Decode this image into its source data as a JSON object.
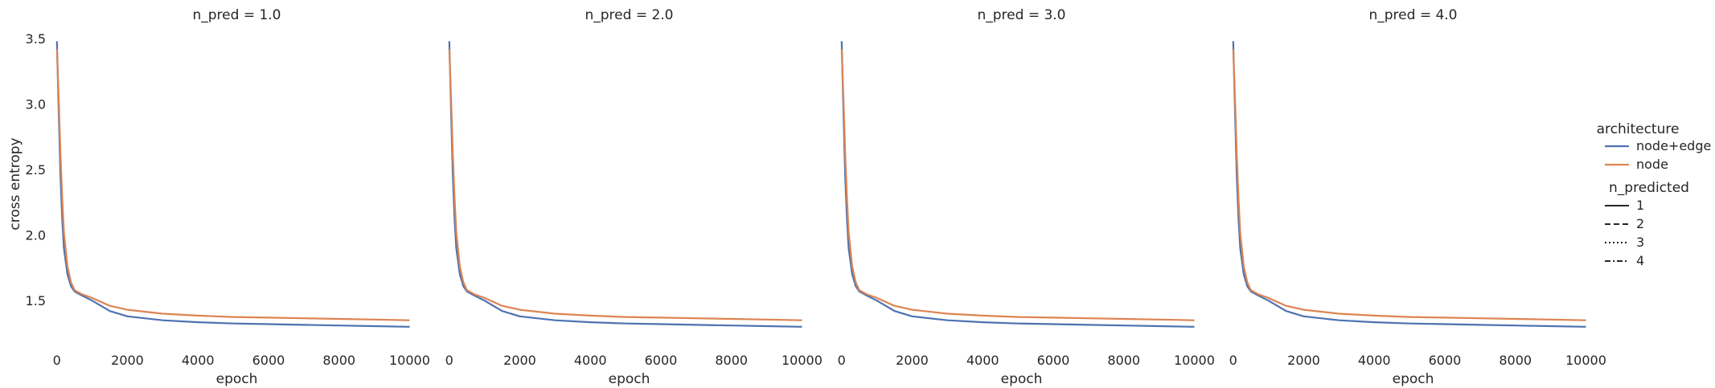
{
  "chart_data": {
    "type": "line",
    "xlabel": "epoch",
    "ylabel": "cross entropy",
    "xlim": [
      -200,
      10400
    ],
    "ylim": [
      1.17,
      3.55
    ],
    "xticks": [
      0,
      2000,
      4000,
      6000,
      8000,
      10000
    ],
    "yticks": [
      1.5,
      2.0,
      2.5,
      3.0,
      3.5
    ],
    "xtick_labels": [
      "0",
      "2000",
      "4000",
      "6000",
      "8000",
      "10000"
    ],
    "ytick_labels": [
      "1.5",
      "2.0",
      "2.5",
      "3.0",
      "3.5"
    ],
    "grid": false,
    "legend_placement": "right",
    "legend": {
      "hue_title": "architecture",
      "hue_entries": [
        {
          "label": "node+edge",
          "color": "#4c72b0"
        },
        {
          "label": "node",
          "color": "#dd8452"
        }
      ],
      "style_title": "n_predicted",
      "style_entries": [
        {
          "label": "1",
          "dash": "solid"
        },
        {
          "label": "2",
          "dash": "dashed"
        },
        {
          "label": "3",
          "dash": "dotted"
        },
        {
          "label": "4",
          "dash": "dashdot"
        }
      ]
    },
    "panels": [
      {
        "title": "n_pred = 1.0",
        "series": [
          {
            "name": "node+edge",
            "x": [
              0,
              50,
              100,
              150,
              200,
              300,
              400,
              500,
              700,
              1000,
              1500,
              2000,
              3000,
              4000,
              5000,
              6000,
              7000,
              8000,
              9000,
              10000
            ],
            "y": [
              3.48,
              2.95,
              2.45,
              2.12,
              1.9,
              1.7,
              1.61,
              1.57,
              1.54,
              1.5,
              1.42,
              1.38,
              1.35,
              1.335,
              1.325,
              1.32,
              1.315,
              1.31,
              1.305,
              1.3
            ]
          },
          {
            "name": "node",
            "x": [
              0,
              50,
              100,
              150,
              200,
              300,
              400,
              500,
              700,
              1000,
              1500,
              2000,
              3000,
              4000,
              5000,
              6000,
              7000,
              8000,
              9000,
              10000
            ],
            "y": [
              3.42,
              3.05,
              2.62,
              2.28,
              2.02,
              1.76,
              1.64,
              1.58,
              1.55,
              1.52,
              1.46,
              1.43,
              1.4,
              1.385,
              1.375,
              1.37,
              1.365,
              1.36,
              1.355,
              1.35
            ]
          }
        ]
      },
      {
        "title": "n_pred = 2.0",
        "series": [
          {
            "name": "node+edge",
            "x": [
              0,
              50,
              100,
              150,
              200,
              300,
              400,
              500,
              700,
              1000,
              1500,
              2000,
              3000,
              4000,
              5000,
              6000,
              7000,
              8000,
              9000,
              10000
            ],
            "y": [
              3.48,
              2.95,
              2.45,
              2.12,
              1.9,
              1.7,
              1.61,
              1.57,
              1.54,
              1.5,
              1.42,
              1.38,
              1.35,
              1.335,
              1.325,
              1.32,
              1.315,
              1.31,
              1.305,
              1.3
            ]
          },
          {
            "name": "node",
            "x": [
              0,
              50,
              100,
              150,
              200,
              300,
              400,
              500,
              700,
              1000,
              1500,
              2000,
              3000,
              4000,
              5000,
              6000,
              7000,
              8000,
              9000,
              10000
            ],
            "y": [
              3.42,
              3.05,
              2.62,
              2.28,
              2.02,
              1.76,
              1.64,
              1.58,
              1.55,
              1.52,
              1.46,
              1.43,
              1.4,
              1.385,
              1.375,
              1.37,
              1.365,
              1.36,
              1.355,
              1.35
            ]
          }
        ]
      },
      {
        "title": "n_pred = 3.0",
        "series": [
          {
            "name": "node+edge",
            "x": [
              0,
              50,
              100,
              150,
              200,
              300,
              400,
              500,
              700,
              1000,
              1500,
              2000,
              3000,
              4000,
              5000,
              6000,
              7000,
              8000,
              9000,
              10000
            ],
            "y": [
              3.48,
              2.95,
              2.45,
              2.12,
              1.9,
              1.7,
              1.61,
              1.57,
              1.54,
              1.5,
              1.42,
              1.38,
              1.35,
              1.335,
              1.325,
              1.32,
              1.315,
              1.31,
              1.305,
              1.3
            ]
          },
          {
            "name": "node",
            "x": [
              0,
              50,
              100,
              150,
              200,
              300,
              400,
              500,
              700,
              1000,
              1500,
              2000,
              3000,
              4000,
              5000,
              6000,
              7000,
              8000,
              9000,
              10000
            ],
            "y": [
              3.42,
              3.05,
              2.62,
              2.28,
              2.02,
              1.76,
              1.64,
              1.58,
              1.55,
              1.52,
              1.46,
              1.43,
              1.4,
              1.385,
              1.375,
              1.37,
              1.365,
              1.36,
              1.355,
              1.35
            ]
          }
        ]
      },
      {
        "title": "n_pred = 4.0",
        "series": [
          {
            "name": "node+edge",
            "x": [
              0,
              50,
              100,
              150,
              200,
              300,
              400,
              500,
              700,
              1000,
              1500,
              2000,
              3000,
              4000,
              5000,
              6000,
              7000,
              8000,
              9000,
              10000
            ],
            "y": [
              3.48,
              2.95,
              2.45,
              2.12,
              1.9,
              1.7,
              1.61,
              1.57,
              1.54,
              1.5,
              1.42,
              1.38,
              1.35,
              1.335,
              1.325,
              1.32,
              1.315,
              1.31,
              1.305,
              1.3
            ]
          },
          {
            "name": "node",
            "x": [
              0,
              50,
              100,
              150,
              200,
              300,
              400,
              500,
              700,
              1000,
              1500,
              2000,
              3000,
              4000,
              5000,
              6000,
              7000,
              8000,
              9000,
              10000
            ],
            "y": [
              3.42,
              3.05,
              2.62,
              2.28,
              2.02,
              1.76,
              1.64,
              1.58,
              1.55,
              1.52,
              1.46,
              1.43,
              1.4,
              1.385,
              1.375,
              1.37,
              1.365,
              1.36,
              1.355,
              1.35
            ]
          }
        ]
      }
    ]
  }
}
